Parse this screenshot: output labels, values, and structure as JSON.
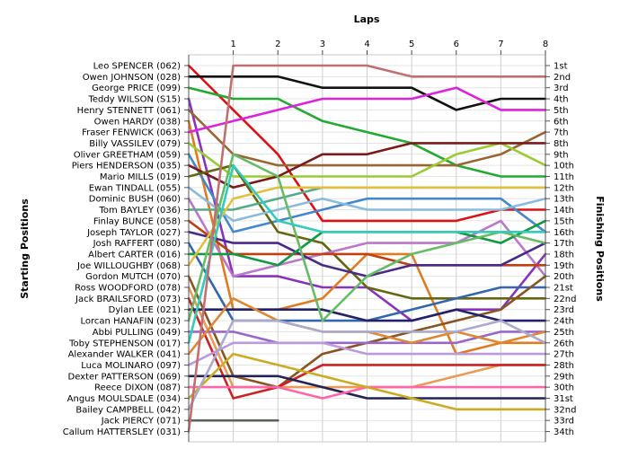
{
  "chart_data": {
    "type": "line",
    "title": "",
    "xlabel": "Laps",
    "ylabel_left": "Starting Positions",
    "ylabel_right": "Finishing Positions",
    "x": [
      0,
      1,
      2,
      3,
      4,
      5,
      6,
      7,
      8
    ],
    "x_tick_labels": [
      "1",
      "2",
      "3",
      "4",
      "5",
      "6",
      "7",
      "8"
    ],
    "ylim": [
      1,
      34
    ],
    "grid": true,
    "finishing_labels": [
      "1st",
      "2nd",
      "3rd",
      "4th",
      "5th",
      "6th",
      "7th",
      "8th",
      "9th",
      "10th",
      "11th",
      "12th",
      "13th",
      "14th",
      "15th",
      "16th",
      "17th",
      "18th",
      "19th",
      "20th",
      "21st",
      "22nd",
      "23rd",
      "24th",
      "25th",
      "26th",
      "27th",
      "28th",
      "29th",
      "30th",
      "31st",
      "32nd",
      "33rd",
      "34th"
    ],
    "series": [
      {
        "name": "Leo SPENCER (062)",
        "color": "#dd1111",
        "positions": [
          1,
          5,
          9,
          15,
          15,
          15,
          15,
          14,
          14
        ]
      },
      {
        "name": "Owen JOHNSON (028)",
        "color": "#111111",
        "positions": [
          2,
          2,
          2,
          3,
          3,
          3,
          5,
          4,
          4
        ]
      },
      {
        "name": "George PRICE (099)",
        "color": "#22aa33",
        "positions": [
          3,
          4,
          4,
          6,
          7,
          8,
          10,
          11,
          11
        ]
      },
      {
        "name": "Teddy WILSON (S15)",
        "color": "#8833bb",
        "positions": [
          4,
          20,
          20,
          21,
          21,
          24,
          23,
          23,
          18
        ]
      },
      {
        "name": "Henry STENNETT (061)",
        "color": "#996633",
        "positions": [
          5,
          9,
          10,
          10,
          10,
          10,
          10,
          9,
          7
        ]
      },
      {
        "name": "Owen HARDY (038)",
        "color": "#e07b20",
        "positions": [
          6,
          23,
          23,
          22,
          18,
          18,
          27,
          26,
          26
        ]
      },
      {
        "name": "Fraser FENWICK (063)",
        "color": "#dd22dd",
        "positions": [
          7,
          6,
          5,
          4,
          4,
          4,
          3,
          5,
          5
        ]
      },
      {
        "name": "Billy VASSILEV (079)",
        "color": "#99cc33",
        "positions": [
          8,
          11,
          11,
          11,
          11,
          11,
          9,
          8,
          10
        ]
      },
      {
        "name": "Oliver GREETHAM (059)",
        "color": "#4488cc",
        "positions": [
          9,
          16,
          15,
          14,
          13,
          13,
          13,
          13,
          16
        ]
      },
      {
        "name": "Piers HENDERSON (035)",
        "color": "#7a1a1a",
        "positions": [
          10,
          12,
          11,
          9,
          9,
          8,
          8,
          8,
          8
        ]
      },
      {
        "name": "Mario MILLS (019)",
        "color": "#666611",
        "positions": [
          11,
          10,
          16,
          17,
          21,
          22,
          22,
          22,
          22
        ]
      },
      {
        "name": "Ewan TINDALL (055)",
        "color": "#88bbdd",
        "positions": [
          12,
          15,
          14,
          13,
          14,
          14,
          14,
          14,
          13
        ]
      },
      {
        "name": "Dominic BUSH (060)",
        "color": "#bb77cc",
        "positions": [
          13,
          20,
          19,
          18,
          17,
          17,
          17,
          15,
          20
        ]
      },
      {
        "name": "Tom BAYLEY (036)",
        "color": "#55aa88",
        "positions": [
          14,
          14,
          13,
          12,
          12,
          12,
          12,
          12,
          12
        ]
      },
      {
        "name": "Finlay BUNCE (058)",
        "color": "#c04010",
        "positions": [
          15,
          18,
          18,
          18,
          18,
          19,
          19,
          19,
          19
        ]
      },
      {
        "name": "Joseph TAYLOR (027)",
        "color": "#4a2a88",
        "positions": [
          16,
          17,
          17,
          19,
          20,
          19,
          19,
          19,
          17
        ]
      },
      {
        "name": "Josh RAFFERT (080)",
        "color": "#3366aa",
        "positions": [
          17,
          24,
          24,
          24,
          24,
          23,
          22,
          21,
          21
        ]
      },
      {
        "name": "Albert CARTER (016)",
        "color": "#119944",
        "positions": [
          18,
          18,
          19,
          16,
          16,
          16,
          16,
          17,
          15
        ]
      },
      {
        "name": "Joe WILLOUGHBY (068)",
        "color": "#e0c040",
        "positions": [
          19,
          13,
          12,
          12,
          12,
          12,
          12,
          12,
          12
        ]
      },
      {
        "name": "Gordon MUTCH (070)",
        "color": "#885522",
        "positions": [
          20,
          29,
          30,
          27,
          26,
          25,
          24,
          23,
          20
        ]
      },
      {
        "name": "Ross WOODFORD (078)",
        "color": "#ee9955",
        "positions": [
          21,
          30,
          30,
          30,
          30,
          30,
          29,
          28,
          28
        ]
      },
      {
        "name": "Jack BRAILSFORD (073)",
        "color": "#cc2222",
        "positions": [
          22,
          31,
          30,
          28,
          28,
          28,
          28,
          28,
          28
        ]
      },
      {
        "name": "Dylan LEE (021)",
        "color": "#22226a",
        "positions": [
          23,
          23,
          23,
          23,
          24,
          24,
          23,
          24,
          24
        ]
      },
      {
        "name": "Lorcan HANAFIN (023)",
        "color": "#66bb66",
        "positions": [
          24,
          9,
          11,
          24,
          20,
          18,
          17,
          16,
          17
        ]
      },
      {
        "name": "Abbi PULLING (049)",
        "color": "#9966cc",
        "positions": [
          25,
          25,
          26,
          26,
          26,
          26,
          26,
          25,
          25
        ]
      },
      {
        "name": "Toby STEPHENSON (017)",
        "color": "#33ccbb",
        "positions": [
          26,
          10,
          15,
          16,
          16,
          16,
          16,
          16,
          16
        ]
      },
      {
        "name": "Alexander WALKER (041)",
        "color": "#dd8833",
        "positions": [
          27,
          22,
          24,
          25,
          25,
          26,
          25,
          26,
          25
        ]
      },
      {
        "name": "Luca MOLINARO (097)",
        "color": "#bb99dd",
        "positions": [
          28,
          26,
          26,
          26,
          27,
          27,
          27,
          27,
          27
        ]
      },
      {
        "name": "Dexter PATTERSON (069)",
        "color": "#222255",
        "positions": [
          29,
          29,
          29,
          30,
          31,
          31,
          31,
          31,
          31
        ]
      },
      {
        "name": "Reece DIXON (087)",
        "color": "#ff66aa",
        "positions": [
          30,
          30,
          30,
          31,
          30,
          30,
          30,
          30,
          30
        ]
      },
      {
        "name": "Angus MOULSDALE (034)",
        "color": "#ccaa22",
        "positions": [
          31,
          27,
          28,
          29,
          30,
          31,
          32,
          32,
          32
        ]
      },
      {
        "name": "Bailey CAMPBELL (042)",
        "color": "#aaaacc",
        "positions": [
          32,
          24,
          24,
          25,
          25,
          25,
          25,
          24,
          26
        ]
      },
      {
        "name": "Jack PIERCY (071)",
        "color": "#556655",
        "positions": [
          33,
          33,
          33,
          null,
          null,
          null,
          null,
          null,
          null
        ]
      },
      {
        "name": "Callum HATTERSLEY (031)",
        "color": "#c07070",
        "positions": [
          34,
          1,
          1,
          1,
          1,
          2,
          2,
          2,
          2
        ]
      }
    ]
  }
}
